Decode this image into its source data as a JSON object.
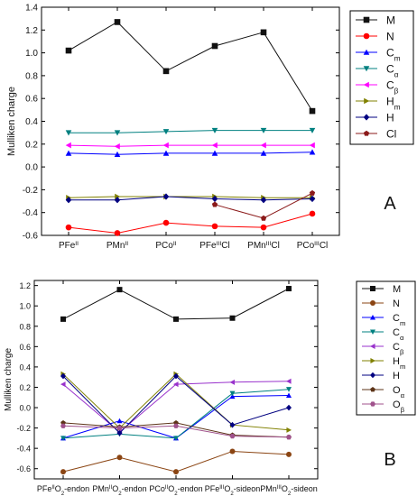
{
  "chart_data": [
    {
      "type": "line",
      "panel_label": "A",
      "ylabel": "Mulliken charge",
      "ylim": [
        -0.6,
        1.4
      ],
      "yticks": [
        -0.6,
        -0.4,
        -0.2,
        0.0,
        0.2,
        0.4,
        0.6,
        0.8,
        1.0,
        1.2,
        1.4
      ],
      "ytick_labels": [
        "-0.6",
        "-0.4",
        "-0.2",
        "0.0",
        "0.2",
        "0.4",
        "0.6",
        "0.8",
        "1.0",
        "1.2",
        "1.4"
      ],
      "categories": [
        {
          "base": "PFe",
          "sup": "II",
          "tail": ""
        },
        {
          "base": "PMn",
          "sup": "II",
          "tail": ""
        },
        {
          "base": "PCo",
          "sup": "II",
          "tail": ""
        },
        {
          "base": "PFe",
          "sup": "III",
          "tail": "Cl"
        },
        {
          "base": "PMn",
          "sup": "III",
          "tail": "Cl"
        },
        {
          "base": "PCo",
          "sup": "III",
          "tail": "Cl"
        }
      ],
      "series": [
        {
          "name": "M",
          "sub": "",
          "color": "#111111",
          "marker": "square",
          "values": [
            1.02,
            1.27,
            0.84,
            1.06,
            1.18,
            0.49
          ]
        },
        {
          "name": "N",
          "sub": "",
          "color": "#ff0000",
          "marker": "circle",
          "values": [
            -0.53,
            -0.58,
            -0.49,
            -0.52,
            -0.53,
            -0.41
          ]
        },
        {
          "name": "C",
          "sub": "m",
          "color": "#0000ff",
          "marker": "triangle-up",
          "values": [
            0.12,
            0.11,
            0.12,
            0.12,
            0.12,
            0.13
          ]
        },
        {
          "name": "C",
          "sub": "α",
          "color": "#008080",
          "marker": "triangle-down",
          "values": [
            0.3,
            0.3,
            0.31,
            0.32,
            0.32,
            0.32
          ]
        },
        {
          "name": "C",
          "sub": "β",
          "color": "#ff00ff",
          "marker": "triangle-left",
          "values": [
            0.19,
            0.18,
            0.19,
            0.19,
            0.19,
            0.19
          ]
        },
        {
          "name": "H",
          "sub": "m",
          "color": "#808000",
          "marker": "triangle-right",
          "values": [
            -0.27,
            -0.26,
            -0.26,
            -0.26,
            -0.27,
            -0.27
          ]
        },
        {
          "name": "H",
          "sub": "",
          "color": "#000080",
          "marker": "diamond",
          "values": [
            -0.29,
            -0.29,
            -0.26,
            -0.28,
            -0.29,
            -0.28
          ]
        },
        {
          "name": "Cl",
          "sub": "",
          "color": "#8b1a1a",
          "marker": "pentagon",
          "values": [
            null,
            null,
            null,
            -0.33,
            -0.45,
            -0.23
          ]
        }
      ]
    },
    {
      "type": "line",
      "panel_label": "B",
      "ylabel": "Mulliken charge",
      "ylim": [
        -0.7,
        1.25
      ],
      "yticks": [
        -0.6,
        -0.4,
        -0.2,
        0.0,
        0.2,
        0.4,
        0.6,
        0.8,
        1.0,
        1.2
      ],
      "ytick_labels": [
        "-0.6",
        "-0.4",
        "-0.2",
        "0.0",
        "0.2",
        "0.4",
        "0.6",
        "0.8",
        "1.0",
        "1.2"
      ],
      "categories": [
        {
          "base": "PFe",
          "sup": "II",
          "tail": "O",
          "tail_sub": "2",
          "tail_rest": "-endon"
        },
        {
          "base": "PMn",
          "sup": "II",
          "tail": "O",
          "tail_sub": "2",
          "tail_rest": "-endon"
        },
        {
          "base": "PCo",
          "sup": "II",
          "tail": "O",
          "tail_sub": "2",
          "tail_rest": "-endon"
        },
        {
          "base": "PFe",
          "sup": "III",
          "tail": "O",
          "tail_sub": "2",
          "tail_rest": "-sideon"
        },
        {
          "base": "PMn",
          "sup": "III",
          "tail": "O",
          "tail_sub": "2",
          "tail_rest": "-sideon"
        }
      ],
      "series": [
        {
          "name": "M",
          "sub": "",
          "color": "#111111",
          "marker": "square",
          "values": [
            0.87,
            1.16,
            0.87,
            0.88,
            1.17
          ]
        },
        {
          "name": "N",
          "sub": "",
          "color": "#8b4513",
          "marker": "circle",
          "values": [
            -0.63,
            -0.49,
            -0.63,
            -0.43,
            -0.46
          ]
        },
        {
          "name": "C",
          "sub": "m",
          "color": "#0000ff",
          "marker": "triangle-up",
          "values": [
            -0.3,
            -0.13,
            -0.3,
            0.11,
            0.12
          ]
        },
        {
          "name": "C",
          "sub": "α",
          "color": "#008080",
          "marker": "triangle-down",
          "values": [
            -0.3,
            -0.26,
            -0.3,
            0.14,
            0.18
          ]
        },
        {
          "name": "C",
          "sub": "β",
          "color": "#9932cc",
          "marker": "triangle-left",
          "values": [
            0.23,
            -0.24,
            0.23,
            0.25,
            0.26
          ]
        },
        {
          "name": "H",
          "sub": "m",
          "color": "#808000",
          "marker": "triangle-right",
          "values": [
            0.33,
            -0.2,
            0.33,
            -0.17,
            -0.22
          ]
        },
        {
          "name": "H",
          "sub": "",
          "color": "#000080",
          "marker": "diamond",
          "values": [
            0.31,
            -0.25,
            0.31,
            -0.17,
            0.0
          ]
        },
        {
          "name": "O",
          "sub": "α",
          "color": "#5c3317",
          "marker": "pentagon",
          "values": [
            -0.15,
            -0.19,
            -0.15,
            -0.27,
            -0.29
          ]
        },
        {
          "name": "O",
          "sub": "β",
          "color": "#a0528c",
          "marker": "hexagon",
          "values": [
            -0.18,
            -0.2,
            -0.18,
            -0.28,
            -0.29
          ]
        }
      ]
    }
  ]
}
